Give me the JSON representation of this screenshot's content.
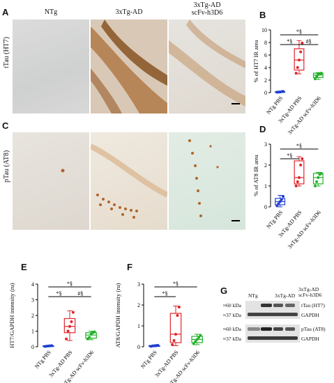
{
  "images": {
    "columns": [
      "NTg",
      "3xTg-AD",
      "3xTg-AD\nscFv-h3D6"
    ],
    "rows": [
      {
        "letter": "A",
        "label": "tTau (HT7)"
      },
      {
        "letter": "C",
        "label": "pTau (AT8)"
      }
    ]
  },
  "colors": {
    "ntg": "#1f3fd1",
    "ad": "#e0262a",
    "scfv": "#22b22a"
  },
  "chart_data": [
    {
      "letter": "B",
      "type": "box",
      "ylabel": "% of HT7 IR area",
      "ylim": [
        0,
        10
      ],
      "yticks": [
        0,
        2,
        4,
        6,
        8,
        10
      ],
      "categories": [
        "NTg PBS",
        "3xTg-AD PBS",
        "3xTg-AD scFv-h3D6"
      ],
      "series": [
        {
          "box": {
            "min": 0.0,
            "q1": 0.05,
            "median": 0.1,
            "q3": 0.15,
            "max": 0.2
          },
          "points": [
            0.05,
            0.1,
            0.1,
            0.15,
            0.2
          ]
        },
        {
          "box": {
            "min": 3.0,
            "q1": 3.6,
            "median": 5.2,
            "q3": 7.0,
            "max": 8.3
          },
          "points": [
            3.1,
            4.0,
            5.2,
            6.5,
            7.9
          ]
        },
        {
          "box": {
            "min": 2.1,
            "q1": 2.4,
            "median": 2.8,
            "q3": 3.1,
            "max": 3.2
          },
          "points": [
            2.2,
            2.6,
            2.9,
            3.0,
            3.1
          ]
        }
      ],
      "annotations": [
        {
          "from": 0,
          "to": 2,
          "text": "*§",
          "level": 0
        },
        {
          "from": 0,
          "to": 1,
          "text": "*§",
          "level": 1
        },
        {
          "from": 1,
          "to": 2,
          "text": "#§",
          "level": 1
        }
      ]
    },
    {
      "letter": "D",
      "type": "box",
      "ylabel": "% of AT8 IR area",
      "ylim": [
        0,
        3
      ],
      "yticks": [
        0,
        1,
        2,
        3
      ],
      "categories": [
        "NTg PBS",
        "3xTg-AD PBS",
        "3xTg-AD scFv-h3D6"
      ],
      "series": [
        {
          "box": {
            "min": 0.0,
            "q1": 0.1,
            "median": 0.25,
            "q3": 0.4,
            "max": 0.55
          },
          "points": [
            0.05,
            0.15,
            0.25,
            0.35,
            0.5
          ]
        },
        {
          "box": {
            "min": 1.0,
            "q1": 1.1,
            "median": 1.4,
            "q3": 2.2,
            "max": 2.4
          },
          "points": [
            1.0,
            1.2,
            1.4,
            2.0,
            2.3
          ]
        },
        {
          "box": {
            "min": 1.0,
            "q1": 1.1,
            "median": 1.4,
            "q3": 1.6,
            "max": 1.65
          },
          "points": [
            1.0,
            1.2,
            1.4,
            1.55,
            1.6
          ]
        }
      ],
      "annotations": [
        {
          "from": 0,
          "to": 2,
          "text": "*§",
          "level": 0
        },
        {
          "from": 0,
          "to": 1,
          "text": "*§",
          "level": 1
        }
      ]
    },
    {
      "letter": "E",
      "type": "box",
      "ylabel": "HT7/GAPDH intensity (ru)",
      "ylim": [
        0,
        4
      ],
      "yticks": [
        0,
        1,
        2,
        3,
        4
      ],
      "categories": [
        "NTg PBS",
        "3xTg-AD PBS",
        "3xTg-AD scFv-h3D6"
      ],
      "series": [
        {
          "box": {
            "min": 0.0,
            "q1": 0.02,
            "median": 0.04,
            "q3": 0.06,
            "max": 0.08
          },
          "points": [
            0.02,
            0.04,
            0.05,
            0.06,
            0.07
          ]
        },
        {
          "box": {
            "min": 0.4,
            "q1": 0.9,
            "median": 1.3,
            "q3": 1.8,
            "max": 2.3
          },
          "points": [
            0.5,
            1.0,
            1.3,
            1.6,
            2.2
          ]
        },
        {
          "box": {
            "min": 0.45,
            "q1": 0.55,
            "median": 0.75,
            "q3": 0.9,
            "max": 1.0
          },
          "points": [
            0.5,
            0.6,
            0.8,
            0.9,
            0.95
          ]
        }
      ],
      "annotations": [
        {
          "from": 0,
          "to": 2,
          "text": "*§",
          "level": 0
        },
        {
          "from": 0,
          "to": 1,
          "text": "*§",
          "level": 1
        },
        {
          "from": 1,
          "to": 2,
          "text": "#§",
          "level": 1
        }
      ]
    },
    {
      "letter": "F",
      "type": "box",
      "ylabel": "AT8/GAPDH intensity (ru)",
      "ylim": [
        0,
        3
      ],
      "yticks": [
        0,
        1,
        2,
        3
      ],
      "categories": [
        "NTg PBS",
        "3xTg-AD PBS",
        "3xTg-AD scFv-h3D6"
      ],
      "series": [
        {
          "box": {
            "min": 0.0,
            "q1": 0.02,
            "median": 0.04,
            "q3": 0.06,
            "max": 0.08
          },
          "points": [
            0.02,
            0.04,
            0.05,
            0.06,
            0.07
          ]
        },
        {
          "box": {
            "min": 0.05,
            "q1": 0.2,
            "median": 0.6,
            "q3": 1.6,
            "max": 1.95
          },
          "points": [
            0.1,
            0.3,
            0.6,
            1.5,
            1.9
          ]
        },
        {
          "box": {
            "min": 0.1,
            "q1": 0.2,
            "median": 0.35,
            "q3": 0.5,
            "max": 0.6
          },
          "points": [
            0.15,
            0.25,
            0.35,
            0.45,
            0.55
          ]
        }
      ],
      "annotations": [
        {
          "from": 0,
          "to": 2,
          "text": "*§",
          "level": 0
        },
        {
          "from": 0,
          "to": 1,
          "text": "*§",
          "level": 1
        }
      ]
    }
  ],
  "blot": {
    "letter": "G",
    "headers": [
      "NTg",
      "3xTg-AD",
      "3xTg-AD\nscFv-h3D6"
    ],
    "groups": [
      {
        "kda_top": "≈60 kDa",
        "kda_bottom": "≈37 kDa",
        "label_top": "tTau (HT7)",
        "label_bottom": "GAPDH"
      },
      {
        "kda_top": "≈60 kDa",
        "kda_bottom": "≈37 kDa",
        "label_top": "pTau (AT8)",
        "label_bottom": "GAPDH"
      }
    ]
  }
}
